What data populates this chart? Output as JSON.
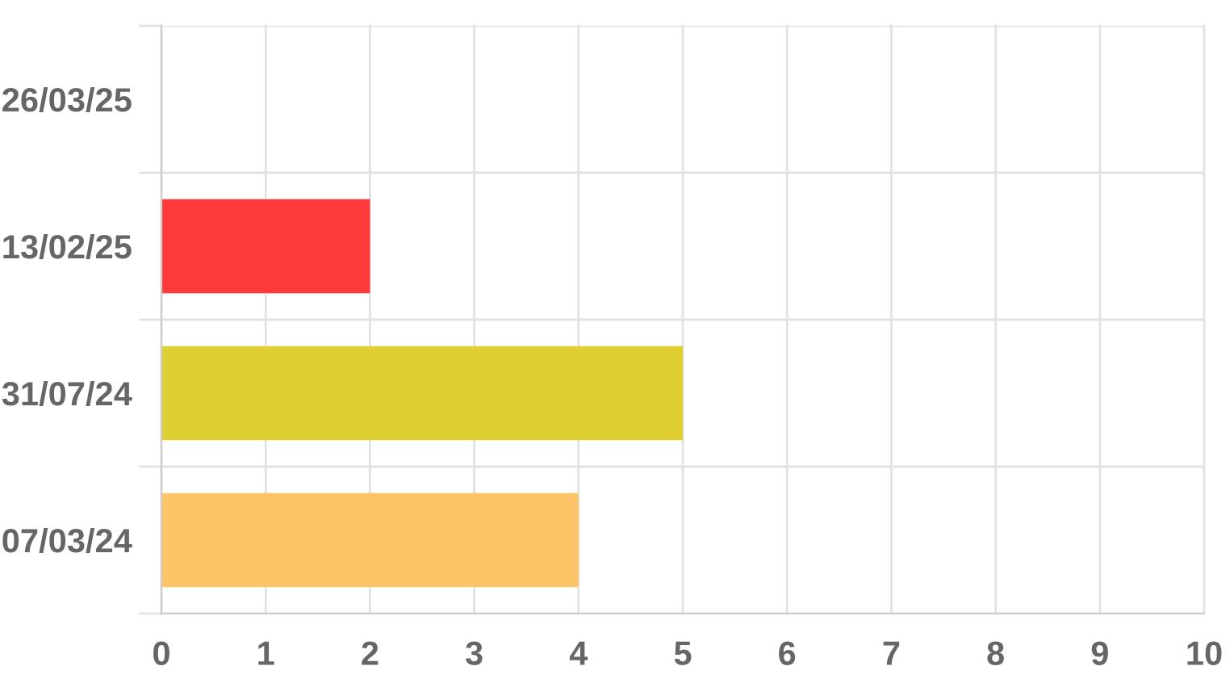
{
  "chart_data": {
    "type": "bar",
    "orientation": "horizontal",
    "categories": [
      "26/03/25",
      "13/02/25",
      "31/07/24",
      "07/03/24"
    ],
    "values": [
      0,
      2,
      5,
      4
    ],
    "colors": [
      null,
      "#ff3a3a",
      "#dfcf33",
      "#fec468"
    ],
    "xlim": [
      0,
      10
    ],
    "xticks": [
      0,
      1,
      2,
      3,
      4,
      5,
      6,
      7,
      8,
      9,
      10
    ],
    "grid": true
  }
}
